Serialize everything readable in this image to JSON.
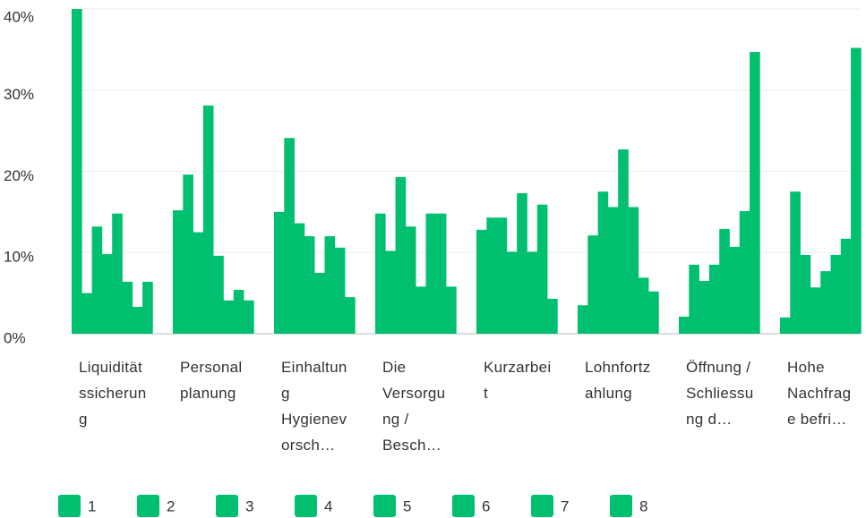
{
  "chart_data": {
    "type": "bar",
    "categories": [
      "Liquiditätssicherung",
      "Personalplanung",
      "Einhaltung Hygienevorsch…",
      "Die Versorgung / Besch…",
      "Kurzarbeit",
      "Lohnfortzahlung",
      "Öffnung / Schliessung d…",
      "Hohe Nachfrage befri…"
    ],
    "series": [
      {
        "name": "1",
        "color": "#00bf6f",
        "values": [
          40,
          15.2,
          15,
          14.8,
          12.8,
          3.5,
          2.1,
          2
        ]
      },
      {
        "name": "2",
        "color": "#00bf6f",
        "values": [
          5,
          19.6,
          24.1,
          10.2,
          14.3,
          12.1,
          8.5,
          17.5
        ]
      },
      {
        "name": "3",
        "color": "#00bf6f",
        "values": [
          13.2,
          12.5,
          13.6,
          19.3,
          14.3,
          17.5,
          6.5,
          9.7
        ]
      },
      {
        "name": "4",
        "color": "#00bf6f",
        "values": [
          9.8,
          28.1,
          12,
          13.2,
          10.1,
          15.6,
          8.5,
          5.7
        ]
      },
      {
        "name": "5",
        "color": "#00bf6f",
        "values": [
          14.8,
          9.6,
          7.5,
          5.8,
          17.3,
          22.7,
          12.9,
          7.7
        ]
      },
      {
        "name": "6",
        "color": "#00bf6f",
        "values": [
          6.4,
          4.1,
          12,
          14.8,
          10.1,
          15.6,
          10.7,
          9.7
        ]
      },
      {
        "name": "7",
        "color": "#00bf6f",
        "values": [
          3.3,
          5.4,
          10.6,
          14.8,
          15.9,
          6.9,
          15.1,
          11.7
        ]
      },
      {
        "name": "8",
        "color": "#00bf6f",
        "values": [
          6.4,
          4.1,
          4.5,
          5.8,
          4.3,
          5.2,
          34.7,
          35.2
        ]
      }
    ],
    "ylim": [
      0,
      40
    ],
    "yticks": [
      {
        "value": 0,
        "label": "0%"
      },
      {
        "value": 10,
        "label": "10%"
      },
      {
        "value": 20,
        "label": "20%"
      },
      {
        "value": 30,
        "label": "30%"
      },
      {
        "value": 40,
        "label": "40%"
      }
    ],
    "grid": true
  }
}
